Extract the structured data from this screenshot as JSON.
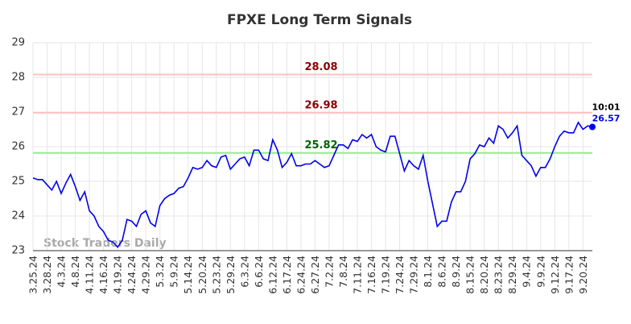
{
  "chart_data": {
    "type": "line",
    "title": "FPXE Long Term Signals",
    "watermark": "Stock Traders Daily",
    "categories": [
      "3.25.24",
      null,
      null,
      "3.28.24",
      null,
      null,
      "4.3.24",
      null,
      null,
      "4.8.24",
      null,
      null,
      "4.11.24",
      null,
      null,
      "4.16.24",
      null,
      null,
      "4.19.24",
      null,
      null,
      "4.24.24",
      null,
      null,
      "4.29.24",
      null,
      null,
      "5.3.24",
      null,
      null,
      "5.9.24",
      null,
      null,
      "5.14.24",
      null,
      null,
      "5.20.24",
      null,
      null,
      "5.23.24",
      null,
      null,
      "5.29.24",
      null,
      null,
      "6.3.24",
      null,
      null,
      "6.6.24",
      null,
      null,
      "6.12.24",
      null,
      null,
      "6.17.24",
      null,
      null,
      "6.24.24",
      null,
      null,
      "6.27.24",
      null,
      null,
      "7.2.24",
      null,
      null,
      "7.8.24",
      null,
      null,
      "7.11.24",
      null,
      null,
      "7.16.24",
      null,
      null,
      "7.19.24",
      null,
      null,
      "7.24.24",
      null,
      null,
      "7.29.24",
      null,
      null,
      "8.1.24",
      null,
      null,
      "8.6.24",
      null,
      null,
      "8.9.24",
      null,
      null,
      "8.15.24",
      null,
      null,
      "8.20.24",
      null,
      null,
      "8.23.24",
      null,
      null,
      "8.29.24",
      null,
      null,
      "9.4.24",
      null,
      null,
      "9.9.24",
      null,
      null,
      "9.12.24",
      null,
      null,
      "9.17.24",
      null,
      null,
      "9.20.24",
      null,
      null
    ],
    "values": [
      25.1,
      25.05,
      25.05,
      24.9,
      24.75,
      25.0,
      24.65,
      24.95,
      25.2,
      24.85,
      24.45,
      24.7,
      24.15,
      24.0,
      23.7,
      23.55,
      23.3,
      23.25,
      23.1,
      23.3,
      23.9,
      23.85,
      23.7,
      24.05,
      24.15,
      23.8,
      23.7,
      24.3,
      24.5,
      24.6,
      24.65,
      24.8,
      24.85,
      25.1,
      25.4,
      25.35,
      25.4,
      25.6,
      25.45,
      25.4,
      25.7,
      25.75,
      25.35,
      25.5,
      25.65,
      25.7,
      25.45,
      25.9,
      25.9,
      25.65,
      25.6,
      26.2,
      25.9,
      25.4,
      25.55,
      25.8,
      25.45,
      25.45,
      25.5,
      25.5,
      25.6,
      25.5,
      25.4,
      25.45,
      25.75,
      26.05,
      26.05,
      25.95,
      26.2,
      26.15,
      26.35,
      26.25,
      26.35,
      26.0,
      25.9,
      25.85,
      26.3,
      26.3,
      25.8,
      25.3,
      25.6,
      25.45,
      25.35,
      25.75,
      25.0,
      24.35,
      23.7,
      23.85,
      23.85,
      24.4,
      24.7,
      24.7,
      25.0,
      25.65,
      25.8,
      26.05,
      26.0,
      26.25,
      26.1,
      26.6,
      26.5,
      26.25,
      26.4,
      26.6,
      25.75,
      25.6,
      25.45,
      25.15,
      25.4,
      25.4,
      25.65,
      26.0,
      26.3,
      26.45,
      26.4,
      26.4,
      26.7,
      26.5,
      26.6,
      26.57
    ],
    "color": "#0000ee",
    "last_time": "10:01",
    "hlines": [
      {
        "value": 28.08,
        "color": "#ffc0c0",
        "label_color": "#8b0000"
      },
      {
        "value": 26.98,
        "color": "#ffc0c0",
        "label_color": "#8b0000"
      },
      {
        "value": 25.82,
        "color": "#90ee90",
        "label_color": "#006400"
      }
    ],
    "ylim": [
      23,
      29
    ],
    "yticks": [
      23,
      24,
      25,
      26,
      27,
      28,
      29
    ],
    "grid": true
  }
}
